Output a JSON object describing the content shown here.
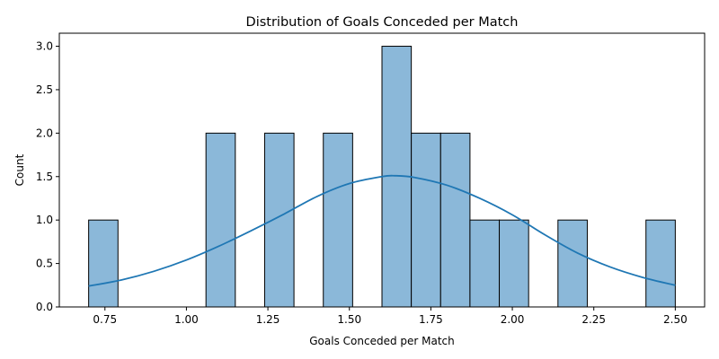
{
  "chart_data": {
    "type": "bar",
    "title": "Distribution of Goals Conceded per Match",
    "xlabel": "Goals Conceded per Match",
    "ylabel": "Count",
    "xlim": [
      0.61,
      2.59
    ],
    "ylim": [
      0,
      3.15
    ],
    "x_ticks": [
      "0.75",
      "1.00",
      "1.25",
      "1.50",
      "1.75",
      "2.00",
      "2.25",
      "2.50"
    ],
    "y_ticks": [
      "0.0",
      "0.5",
      "1.0",
      "1.5",
      "2.0",
      "2.5",
      "3.0"
    ],
    "bins": [
      {
        "x0": 0.7,
        "x1": 0.79,
        "count": 1
      },
      {
        "x0": 0.79,
        "x1": 0.88,
        "count": 0
      },
      {
        "x0": 0.88,
        "x1": 0.97,
        "count": 0
      },
      {
        "x0": 0.97,
        "x1": 1.06,
        "count": 0
      },
      {
        "x0": 1.06,
        "x1": 1.15,
        "count": 2
      },
      {
        "x0": 1.15,
        "x1": 1.24,
        "count": 0
      },
      {
        "x0": 1.24,
        "x1": 1.33,
        "count": 2
      },
      {
        "x0": 1.33,
        "x1": 1.42,
        "count": 0
      },
      {
        "x0": 1.42,
        "x1": 1.51,
        "count": 2
      },
      {
        "x0": 1.51,
        "x1": 1.6,
        "count": 0
      },
      {
        "x0": 1.6,
        "x1": 1.69,
        "count": 3
      },
      {
        "x0": 1.69,
        "x1": 1.78,
        "count": 2
      },
      {
        "x0": 1.78,
        "x1": 1.87,
        "count": 2
      },
      {
        "x0": 1.87,
        "x1": 1.96,
        "count": 1
      },
      {
        "x0": 1.96,
        "x1": 2.05,
        "count": 1
      },
      {
        "x0": 2.05,
        "x1": 2.14,
        "count": 0
      },
      {
        "x0": 2.14,
        "x1": 2.23,
        "count": 1
      },
      {
        "x0": 2.23,
        "x1": 2.32,
        "count": 0
      },
      {
        "x0": 2.32,
        "x1": 2.41,
        "count": 0
      },
      {
        "x0": 2.41,
        "x1": 2.5,
        "count": 1
      }
    ],
    "kde": {
      "x": [
        0.7,
        0.8,
        0.9,
        1.0,
        1.1,
        1.2,
        1.3,
        1.4,
        1.5,
        1.6,
        1.64,
        1.7,
        1.8,
        1.9,
        2.0,
        2.1,
        2.2,
        2.3,
        2.4,
        2.5
      ],
      "y": [
        0.24,
        0.31,
        0.41,
        0.54,
        0.7,
        0.88,
        1.07,
        1.27,
        1.42,
        1.5,
        1.51,
        1.49,
        1.4,
        1.25,
        1.06,
        0.83,
        0.62,
        0.46,
        0.34,
        0.25
      ]
    },
    "bar_color": "#8bb8d9",
    "bar_edge_color": "#000000",
    "line_color": "#1f77b4",
    "grid": false,
    "legend": "none"
  }
}
